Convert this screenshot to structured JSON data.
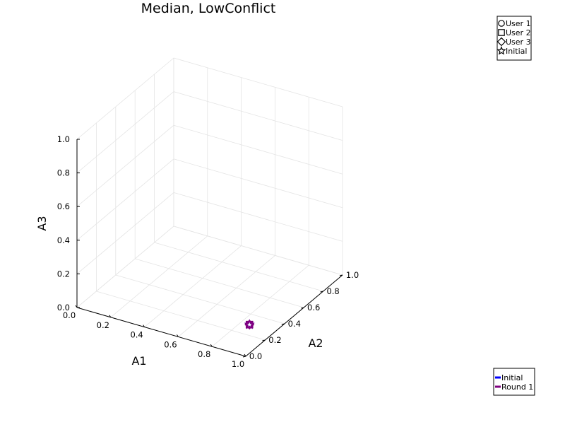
{
  "chart_data": {
    "type": "scatter",
    "projection": "3d",
    "title": "Median, LowConflict",
    "xlabel": "A1",
    "ylabel": "A2",
    "zlabel": "A3",
    "xlim": [
      0,
      1
    ],
    "ylim": [
      0,
      1
    ],
    "zlim": [
      0,
      1
    ],
    "x_ticks": [
      "0.0",
      "0.2",
      "0.4",
      "0.6",
      "0.8",
      "1.0"
    ],
    "y_ticks": [
      "0.0",
      "0.2",
      "0.4",
      "0.6",
      "0.8",
      "1.0"
    ],
    "z_ticks": [
      "0.0",
      "0.2",
      "0.4",
      "0.6",
      "0.8",
      "1.0"
    ],
    "grid": true,
    "marker_legend": {
      "placement": "top-right",
      "entries": [
        {
          "label": "User 1",
          "marker": "circle"
        },
        {
          "label": "User 2",
          "marker": "square"
        },
        {
          "label": "User 3",
          "marker": "diamond"
        },
        {
          "label": "Initial",
          "marker": "star"
        }
      ]
    },
    "line_legend": {
      "placement": "bottom-right",
      "entries": [
        {
          "label": "Initial",
          "color": "#0000ff"
        },
        {
          "label": "Round 1",
          "color": "#800080"
        }
      ]
    },
    "series": [
      {
        "name": "Initial",
        "color": "#0000ff",
        "points": [
          {
            "marker": "star",
            "x": 0.85,
            "y": 0.3,
            "z": 0.0
          }
        ]
      },
      {
        "name": "Round 1",
        "color": "#800080",
        "points": [
          {
            "marker": "circle",
            "x": 0.85,
            "y": 0.3,
            "z": 0.0
          },
          {
            "marker": "square",
            "x": 0.85,
            "y": 0.3,
            "z": 0.0
          },
          {
            "marker": "diamond",
            "x": 0.85,
            "y": 0.3,
            "z": 0.0
          },
          {
            "marker": "star",
            "x": 0.85,
            "y": 0.3,
            "z": 0.0
          }
        ]
      }
    ]
  }
}
